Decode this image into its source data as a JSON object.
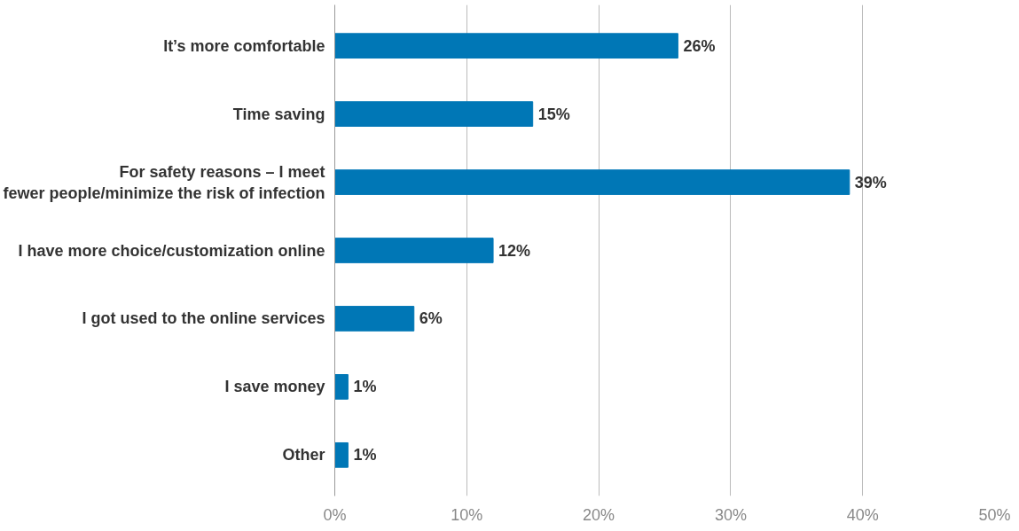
{
  "chart_data": {
    "type": "bar",
    "orientation": "horizontal",
    "categories": [
      "It’s more comfortable",
      "Time saving",
      "For safety reasons – I meet\nfewer people/minimize the risk of infection",
      "I have more choice/customization online",
      "I got used to the online services",
      "I save money",
      "Other"
    ],
    "values": [
      26,
      15,
      39,
      12,
      6,
      1,
      1
    ],
    "value_labels": [
      "26%",
      "15%",
      "39%",
      "12%",
      "6%",
      "1%",
      "1%"
    ],
    "color": "#0077b6",
    "xlim": [
      0,
      50
    ],
    "xticks": [
      {
        "value": 0,
        "label": "0%"
      },
      {
        "value": 10,
        "label": "10%"
      },
      {
        "value": 20,
        "label": "20%"
      },
      {
        "value": 30,
        "label": "30%"
      },
      {
        "value": 40,
        "label": "40%"
      },
      {
        "value": 50,
        "label": "50%"
      }
    ],
    "grid": "x"
  }
}
